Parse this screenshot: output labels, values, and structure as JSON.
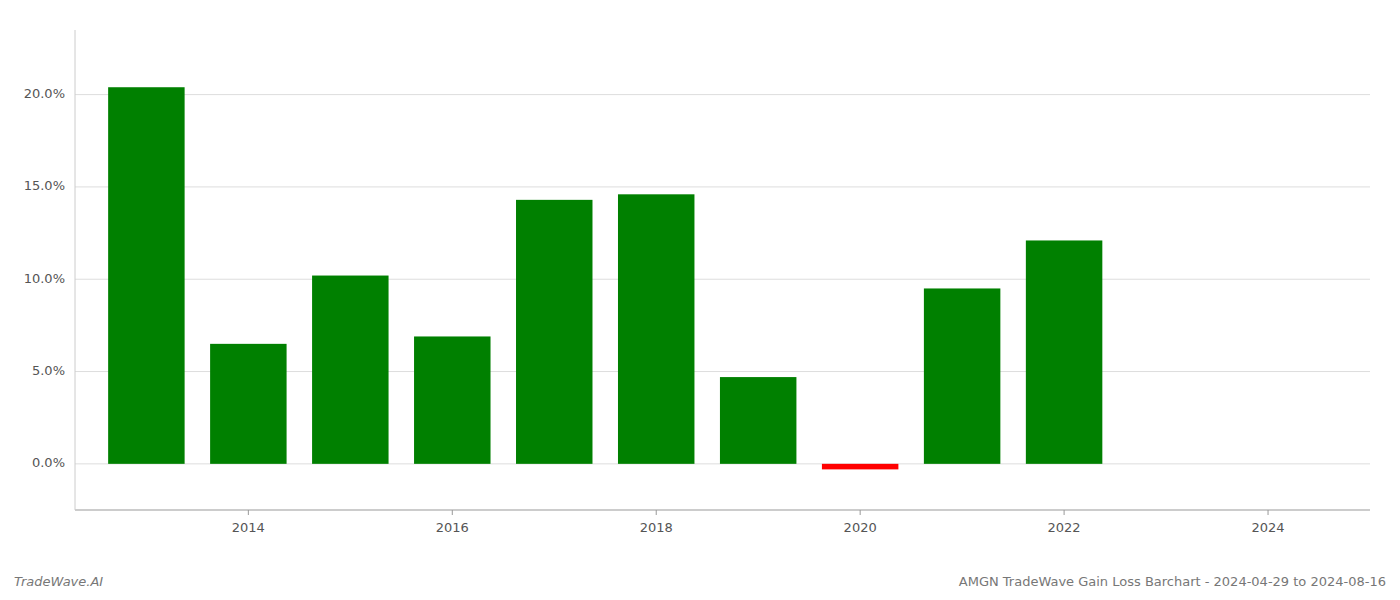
{
  "chart_data": {
    "type": "bar",
    "x": [
      2013,
      2014,
      2015,
      2016,
      2017,
      2018,
      2019,
      2020,
      2021,
      2022,
      2023
    ],
    "values": [
      0.204,
      0.065,
      0.102,
      0.069,
      0.143,
      0.146,
      0.047,
      -0.003,
      0.095,
      0.121,
      0.0
    ],
    "colors": [
      "#008000",
      "#008000",
      "#008000",
      "#008000",
      "#008000",
      "#008000",
      "#008000",
      "#ff0000",
      "#008000",
      "#008000",
      "#008000"
    ],
    "xlim": [
      2012.3,
      2025.0
    ],
    "xticks": [
      2014,
      2016,
      2018,
      2020,
      2022,
      2024
    ],
    "ylim": [
      -0.025,
      0.235
    ],
    "yticks": [
      {
        "value": 0.0,
        "label": "0.0%"
      },
      {
        "value": 0.05,
        "label": "5.0%"
      },
      {
        "value": 0.1,
        "label": "10.0%"
      },
      {
        "value": 0.15,
        "label": "15.0%"
      },
      {
        "value": 0.2,
        "label": "20.0%"
      }
    ],
    "grid": true,
    "annotations": [
      "TradeWave.AI",
      "AMGN TradeWave Gain Loss Barchart - 2024-04-29 to 2024-08-16"
    ]
  }
}
